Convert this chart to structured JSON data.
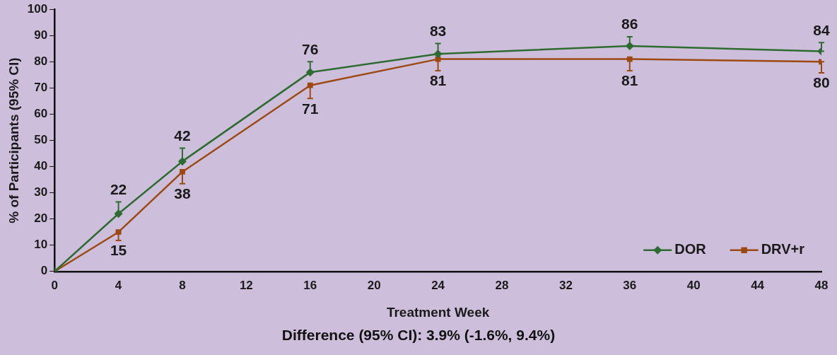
{
  "chart_data": {
    "type": "line",
    "xlabel": "Treatment Week",
    "ylabel": "% of Participants (95% CI)",
    "x": [
      0,
      4,
      8,
      16,
      24,
      36,
      48
    ],
    "series": [
      {
        "name": "DOR",
        "color": "#2e6b30",
        "marker": "diamond",
        "values": [
          0,
          22,
          42,
          76,
          83,
          86,
          84
        ],
        "errors": [
          null,
          [
            22,
            26.5
          ],
          [
            42,
            47
          ],
          [
            76,
            80
          ],
          [
            83,
            87
          ],
          [
            86,
            89.5
          ],
          [
            84,
            87.3
          ]
        ],
        "value_labels": [
          null,
          "22",
          "42",
          "76",
          "83",
          "86",
          "84"
        ]
      },
      {
        "name": "DRV+r",
        "color": "#9c4a12",
        "marker": "square",
        "values": [
          0,
          15,
          38,
          71,
          81,
          81,
          80
        ],
        "errors": [
          null,
          [
            11.8,
            15
          ],
          [
            33.5,
            38
          ],
          [
            66,
            71
          ],
          [
            76.6,
            81
          ],
          [
            76.6,
            81
          ],
          [
            75.8,
            80
          ]
        ],
        "value_labels": [
          null,
          "15",
          "38",
          "71",
          "81",
          "81",
          "80"
        ]
      }
    ],
    "xlim": [
      0,
      48
    ],
    "xticks": [
      0,
      4,
      8,
      12,
      16,
      20,
      24,
      28,
      32,
      36,
      40,
      44,
      48
    ],
    "ylim": [
      0,
      100
    ],
    "yticks": [
      0,
      10,
      20,
      30,
      40,
      50,
      60,
      70,
      80,
      90,
      100
    ],
    "grid": false,
    "legend": "bottom right",
    "line_style": "solid",
    "annotations": [
      "Difference (95% CI): 3.9% (-1.6%, 9.4%)"
    ]
  }
}
